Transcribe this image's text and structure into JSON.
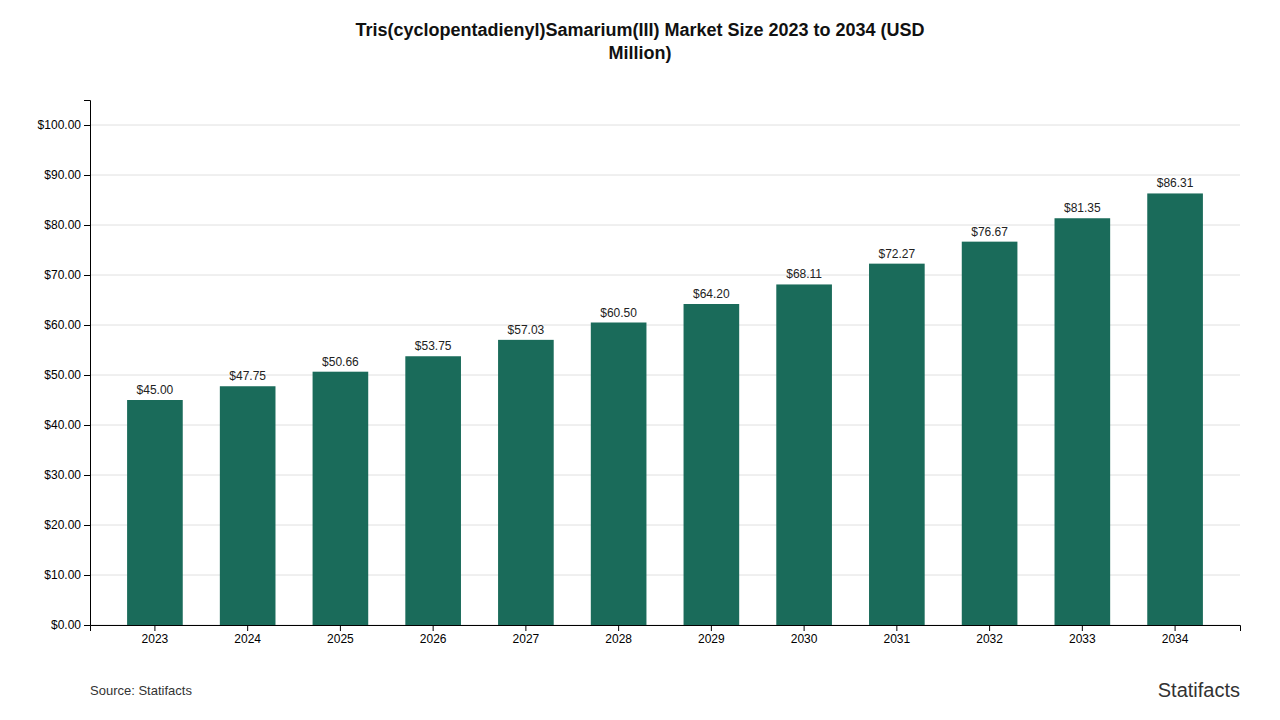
{
  "chart_data": {
    "type": "bar",
    "title": "Tris(cyclopentadienyl)Samarium(III) Market Size 2023 to 2034 (USD\nMillion)",
    "categories": [
      "2023",
      "2024",
      "2025",
      "2026",
      "2027",
      "2028",
      "2029",
      "2030",
      "2031",
      "2032",
      "2033",
      "2034"
    ],
    "values": [
      45.0,
      47.75,
      50.66,
      53.75,
      57.03,
      60.5,
      64.2,
      68.11,
      72.27,
      76.67,
      81.35,
      86.31
    ],
    "value_labels": [
      "$45.00",
      "$47.75",
      "$50.66",
      "$53.75",
      "$57.03",
      "$60.50",
      "$64.20",
      "$68.11",
      "$72.27",
      "$76.67",
      "$81.35",
      "$86.31"
    ],
    "data_labels": true,
    "color": "#1a6b5a",
    "ylim": [
      0,
      105
    ],
    "yticks": [
      {
        "value": 0,
        "label": "$0.00"
      },
      {
        "value": 10,
        "label": "$10.00"
      },
      {
        "value": 20,
        "label": "$20.00"
      },
      {
        "value": 30,
        "label": "$30.00"
      },
      {
        "value": 40,
        "label": "$40.00"
      },
      {
        "value": 50,
        "label": "$50.00"
      },
      {
        "value": 60,
        "label": "$60.00"
      },
      {
        "value": 70,
        "label": "$70.00"
      },
      {
        "value": 80,
        "label": "$80.00"
      },
      {
        "value": 90,
        "label": "$90.00"
      },
      {
        "value": 100,
        "label": "$100.00"
      }
    ],
    "grid": true,
    "annotations": [
      "Source: Statifacts",
      "Statifacts"
    ]
  }
}
